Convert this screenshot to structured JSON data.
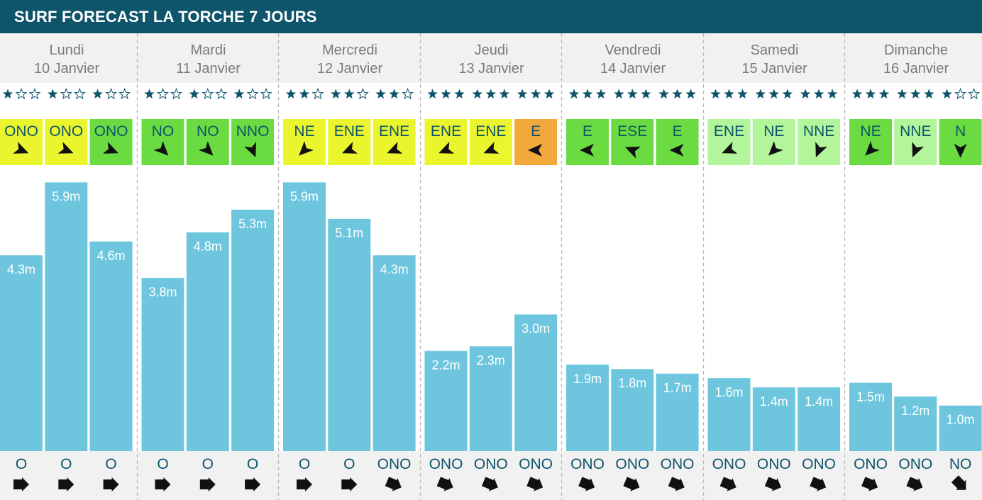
{
  "page": {
    "title": "SURF FORECAST LA TORCHE 7 JOURS"
  },
  "colors": {
    "header_bg": "#0e546b",
    "bar": "#6ec6de",
    "star": "#0e546b",
    "wind_yellow": "#eaf52e",
    "wind_green": "#6adc41",
    "wind_lightgreen": "#b2f59a",
    "wind_orange": "#f2a83a"
  },
  "chart_data": {
    "type": "bar",
    "unit": "m",
    "ylim": [
      0,
      6
    ],
    "days": [
      {
        "name": "Lundi",
        "date": "10 Janvier",
        "slots": [
          {
            "stars": 1,
            "wind": "ONO",
            "wind_color": "yellow",
            "height": 4.3,
            "height_label": "4.3m",
            "swell_dir": "O"
          },
          {
            "stars": 1,
            "wind": "ONO",
            "wind_color": "yellow",
            "height": 5.9,
            "height_label": "5.9m",
            "swell_dir": "O"
          },
          {
            "stars": 1,
            "wind": "ONO",
            "wind_color": "green",
            "height": 4.6,
            "height_label": "4.6m",
            "swell_dir": "O"
          }
        ]
      },
      {
        "name": "Mardi",
        "date": "11 Janvier",
        "slots": [
          {
            "stars": 1,
            "wind": "NO",
            "wind_color": "green",
            "height": 3.8,
            "height_label": "3.8m",
            "swell_dir": "O"
          },
          {
            "stars": 1,
            "wind": "NO",
            "wind_color": "green",
            "height": 4.8,
            "height_label": "4.8m",
            "swell_dir": "O"
          },
          {
            "stars": 1,
            "wind": "NNO",
            "wind_color": "green",
            "height": 5.3,
            "height_label": "5.3m",
            "swell_dir": "O"
          }
        ]
      },
      {
        "name": "Mercredi",
        "date": "12 Janvier",
        "slots": [
          {
            "stars": 2,
            "wind": "NE",
            "wind_color": "yellow",
            "height": 5.9,
            "height_label": "5.9m",
            "swell_dir": "O"
          },
          {
            "stars": 2,
            "wind": "ENE",
            "wind_color": "yellow",
            "height": 5.1,
            "height_label": "5.1m",
            "swell_dir": "O"
          },
          {
            "stars": 2,
            "wind": "ENE",
            "wind_color": "yellow",
            "height": 4.3,
            "height_label": "4.3m",
            "swell_dir": "ONO"
          }
        ]
      },
      {
        "name": "Jeudi",
        "date": "13 Janvier",
        "slots": [
          {
            "stars": 3,
            "wind": "ENE",
            "wind_color": "yellow",
            "height": 2.2,
            "height_label": "2.2m",
            "swell_dir": "ONO"
          },
          {
            "stars": 3,
            "wind": "ENE",
            "wind_color": "yellow",
            "height": 2.3,
            "height_label": "2.3m",
            "swell_dir": "ONO"
          },
          {
            "stars": 3,
            "wind": "E",
            "wind_color": "orange",
            "height": 3.0,
            "height_label": "3.0m",
            "swell_dir": "ONO"
          }
        ]
      },
      {
        "name": "Vendredi",
        "date": "14 Janvier",
        "slots": [
          {
            "stars": 3,
            "wind": "E",
            "wind_color": "green",
            "height": 1.9,
            "height_label": "1.9m",
            "swell_dir": "ONO"
          },
          {
            "stars": 3,
            "wind": "ESE",
            "wind_color": "green",
            "height": 1.8,
            "height_label": "1.8m",
            "swell_dir": "ONO"
          },
          {
            "stars": 3,
            "wind": "E",
            "wind_color": "green",
            "height": 1.7,
            "height_label": "1.7m",
            "swell_dir": "ONO"
          }
        ]
      },
      {
        "name": "Samedi",
        "date": "15 Janvier",
        "slots": [
          {
            "stars": 3,
            "wind": "ENE",
            "wind_color": "lightgreen",
            "height": 1.6,
            "height_label": "1.6m",
            "swell_dir": "ONO"
          },
          {
            "stars": 3,
            "wind": "NE",
            "wind_color": "lightgreen",
            "height": 1.4,
            "height_label": "1.4m",
            "swell_dir": "ONO"
          },
          {
            "stars": 3,
            "wind": "NNE",
            "wind_color": "lightgreen",
            "height": 1.4,
            "height_label": "1.4m",
            "swell_dir": "ONO"
          }
        ]
      },
      {
        "name": "Dimanche",
        "date": "16 Janvier",
        "slots": [
          {
            "stars": 3,
            "wind": "NE",
            "wind_color": "green",
            "height": 1.5,
            "height_label": "1.5m",
            "swell_dir": "ONO"
          },
          {
            "stars": 3,
            "wind": "NNE",
            "wind_color": "lightgreen",
            "height": 1.2,
            "height_label": "1.2m",
            "swell_dir": "ONO"
          },
          {
            "stars": 1,
            "wind": "N",
            "wind_color": "green",
            "height": 1.0,
            "height_label": "1.0m",
            "swell_dir": "NO"
          }
        ]
      }
    ]
  }
}
